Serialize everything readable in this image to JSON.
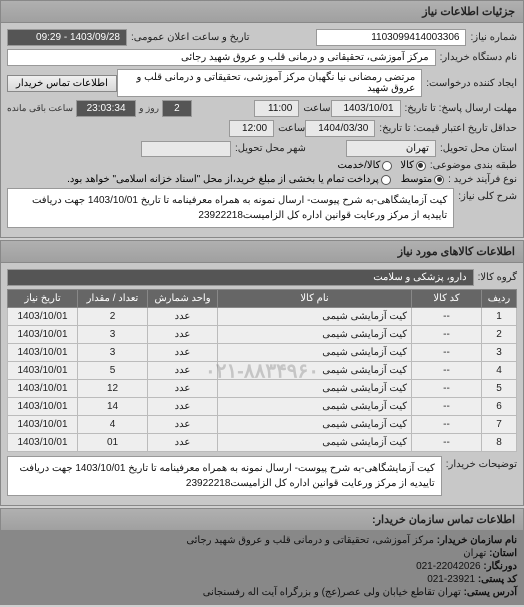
{
  "panels": {
    "details_title": "جزئیات اطلاعات نیاز",
    "goods_title": "اطلاعات کالاهای مورد نیاز",
    "contact_title": "اطلاعات تماس سازمان خریدار:"
  },
  "fields": {
    "need_number_label": "شماره نیاز:",
    "need_number": "1103099414003306",
    "announce_label": "تاریخ و ساعت اعلان عمومی:",
    "announce_value": "1403/09/28 - 09:29",
    "buyer_label": "نام دستگاه خریدار:",
    "buyer_value": "مرکز آموزشی، تحقیقاتی و درمانی قلب و عروق شهید رجائی",
    "requester_label": "ایجاد کننده درخواست:",
    "requester_value": "مرتضی رمضانی نیا نگهبان مرکز آموزشی، تحقیقاتی و درمانی قلب و عروق شهید",
    "contact_btn": "اطلاعات تماس خریدار",
    "deadline_send_label": "مهلت ارسال پاسخ: تا تاریخ:",
    "deadline_send_date": "1403/10/01",
    "hour_label": "ساعت",
    "deadline_send_hour": "11:00",
    "days_value": "2",
    "days_label": "روز و",
    "remain_value": "23:03:34",
    "remain_label": "ساعت باقی مانده",
    "valid_until_label": "حداقل تاریخ اعتبار قیمت: تا تاریخ:",
    "valid_until_date": "1404/03/30",
    "valid_until_hour": "12:00",
    "delivery_label": "استان محل تحویل:",
    "delivery_value": "تهران",
    "city_label": "شهر محل تحویل:",
    "budget_label": "طبقه بندی موضوعی:",
    "budget_opts": {
      "kala": "کالا",
      "khadamat": "کالا/خدمت"
    },
    "buy_type_label": "نوع فرآیند خرید :",
    "buy_opts": {
      "mid": "متوسط",
      "other_text": "پرداخت تمام یا بخشی از مبلغ خرید،از محل \"اسناد خزانه اسلامی\" خواهد بود."
    },
    "desc_label": "شرح کلی نیاز:",
    "desc_text": "کیت آزمایشگاهی-به شرح پیوست- ارسال نمونه به همراه معرفینامه تا تاریخ 1403/10/01 جهت دریافت تاییدیه از مرکز ورعایت قوانین اداره کل الزامیست23922218",
    "goods_group_label": "گروه کالا:",
    "goods_group": "دارو، پزشکی و سلامت",
    "buyer_notes_label": "توضیحات خریدار:",
    "buyer_notes": "کیت آزمایشگاهی-به شرح پیوست- ارسال نمونه به همراه معرفینامه تا تاریخ 1403/10/01 جهت دریافت تاییدیه از مرکز ورعایت قوانین اداره کل الزامیست23922218"
  },
  "table": {
    "headers": [
      "ردیف",
      "کد کالا",
      "نام کالا",
      "واحد شمارش",
      "تعداد / مقدار",
      "تاریخ نیاز"
    ],
    "rows": [
      [
        "1",
        "--",
        "کیت آزمایشی شیمی",
        "عدد",
        "2",
        "1403/10/01"
      ],
      [
        "2",
        "--",
        "کیت آزمایشی شیمی",
        "عدد",
        "3",
        "1403/10/01"
      ],
      [
        "3",
        "--",
        "کیت آزمایشی شیمی",
        "عدد",
        "3",
        "1403/10/01"
      ],
      [
        "4",
        "--",
        "کیت آزمایشی شیمی",
        "عدد",
        "5",
        "1403/10/01"
      ],
      [
        "5",
        "--",
        "کیت آزمایشی شیمی",
        "عدد",
        "12",
        "1403/10/01"
      ],
      [
        "6",
        "--",
        "کیت آزمایشی شیمی",
        "عدد",
        "14",
        "1403/10/01"
      ],
      [
        "7",
        "--",
        "کیت آزمایشی شیمی",
        "عدد",
        "4",
        "1403/10/01"
      ],
      [
        "8",
        "--",
        "کیت آزمایشی شیمی",
        "عدد",
        "01",
        "1403/10/01"
      ]
    ],
    "watermark": "۰۲۱-۸۸۳۴۹۶۰"
  },
  "footer": {
    "org_label": "نام سازمان خریدار:",
    "org_value": "مرکز آموزشی، تحقیقاتی و درمانی قلب و عروق شهید رجائی",
    "province_label": "استان:",
    "province": "تهران",
    "fax_label": "دورنگار:",
    "fax": "22042026-021",
    "post_label": "کد پستی:",
    "post": "23921-021",
    "address_label": "آدرس یستی:",
    "address": "تهران تقاطع خیابان ولی عصر(عج) و بزرگراه آیت اله رفسنجانی"
  }
}
